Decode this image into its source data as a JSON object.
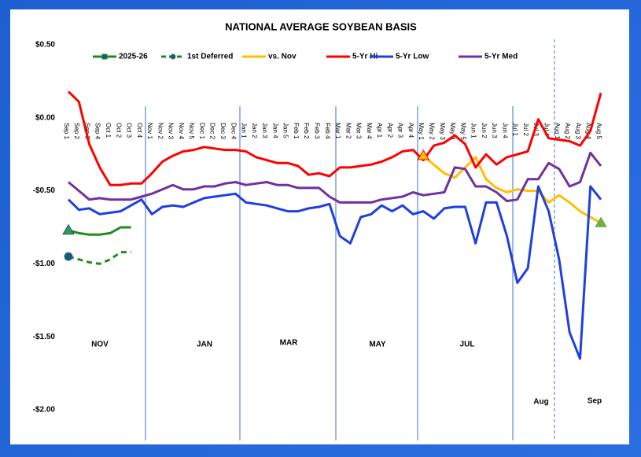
{
  "chart_data": {
    "type": "line",
    "title": "NATIONAL AVERAGE SOYBEAN BASIS",
    "categories": [
      "Sep 1",
      "Sep 2",
      "Sep 3",
      "Sep 4",
      "Oct 1",
      "Oct 2",
      "Oct 3",
      "Oct 4",
      "Nov 1",
      "Nov 2",
      "Nov 3",
      "Nov 4",
      "Nov 5",
      "Dec 1",
      "Dec 2",
      "Dec 3",
      "Dec 4",
      "Jan 1",
      "Jan 2",
      "Jan 3",
      "Jan 4",
      "Jan 5",
      "Feb 1",
      "Feb 2",
      "Feb 3",
      "Feb 4",
      "Mar 1",
      "Mar 2",
      "Mar 3",
      "Mar 4",
      "Apr 1",
      "Apr 2",
      "Apr 3",
      "Apr 4",
      "May 1",
      "May 2",
      "May 3",
      "May 4",
      "May 5",
      "Jun 1",
      "Jun 2",
      "Jun 3",
      "Jun 4",
      "Jul 1",
      "Jul 2",
      "Jul 3",
      "Jul 4",
      "Aug 1",
      "Aug 2",
      "Aug 3",
      "Aug 4",
      "Aug 5"
    ],
    "series": [
      {
        "name": "2025-26",
        "color": "#1e8c1e",
        "dash": false,
        "values": [
          -0.77,
          -0.79,
          -0.8,
          -0.8,
          -0.79,
          -0.75,
          -0.75,
          null,
          null,
          null,
          null,
          null,
          null,
          null,
          null,
          null,
          null,
          null,
          null,
          null,
          null,
          null,
          null,
          null,
          null,
          null,
          null,
          null,
          null,
          null,
          null,
          null,
          null,
          null,
          null,
          null,
          null,
          null,
          null,
          null,
          null,
          null,
          null,
          null,
          null,
          null,
          null,
          null,
          null,
          null,
          null,
          null
        ]
      },
      {
        "name": "1st Deferred",
        "color": "#1e8c1e",
        "dash": true,
        "values": [
          -0.95,
          -0.97,
          -0.99,
          -1.0,
          -0.97,
          -0.92,
          -0.92,
          null,
          null,
          null,
          null,
          null,
          null,
          null,
          null,
          null,
          null,
          null,
          null,
          null,
          null,
          null,
          null,
          null,
          null,
          null,
          null,
          null,
          null,
          null,
          null,
          null,
          null,
          null,
          null,
          null,
          null,
          null,
          null,
          null,
          null,
          null,
          null,
          null,
          null,
          null,
          null,
          null,
          null,
          null,
          null,
          null
        ]
      },
      {
        "name": "vs. Nov",
        "color": "#ffc000",
        "dash": false,
        "values": [
          null,
          null,
          null,
          null,
          null,
          null,
          null,
          null,
          null,
          null,
          null,
          null,
          null,
          null,
          null,
          null,
          null,
          null,
          null,
          null,
          null,
          null,
          null,
          null,
          null,
          null,
          null,
          null,
          null,
          null,
          null,
          null,
          null,
          null,
          -0.26,
          -0.32,
          -0.38,
          -0.41,
          -0.34,
          -0.27,
          -0.42,
          -0.48,
          -0.51,
          -0.49,
          -0.5,
          -0.5,
          -0.58,
          -0.53,
          -0.58,
          -0.64,
          -0.68,
          -0.72
        ]
      },
      {
        "name": "5-Yr Hi",
        "color": "#ff0000",
        "dash": false,
        "values": [
          0.18,
          0.11,
          -0.18,
          -0.34,
          -0.46,
          -0.46,
          -0.45,
          -0.45,
          -0.38,
          -0.3,
          -0.26,
          -0.23,
          -0.22,
          -0.2,
          -0.21,
          -0.22,
          -0.22,
          -0.23,
          -0.27,
          -0.29,
          -0.31,
          -0.31,
          -0.33,
          -0.39,
          -0.38,
          -0.4,
          -0.34,
          -0.34,
          -0.33,
          -0.32,
          -0.3,
          -0.27,
          -0.23,
          -0.22,
          -0.29,
          -0.19,
          -0.17,
          -0.12,
          -0.18,
          -0.34,
          -0.25,
          -0.32,
          -0.27,
          -0.25,
          -0.23,
          -0.01,
          -0.14,
          -0.15,
          -0.16,
          -0.19,
          -0.09,
          0.17
        ]
      },
      {
        "name": "5-Yr Low",
        "color": "#1f3fe0",
        "dash": false,
        "values": [
          -0.56,
          -0.63,
          -0.62,
          -0.66,
          -0.65,
          -0.64,
          -0.6,
          -0.56,
          -0.66,
          -0.61,
          -0.6,
          -0.61,
          -0.58,
          -0.55,
          -0.54,
          -0.53,
          -0.52,
          -0.58,
          -0.59,
          -0.6,
          -0.62,
          -0.64,
          -0.64,
          -0.62,
          -0.61,
          -0.59,
          -0.81,
          -0.86,
          -0.68,
          -0.66,
          -0.6,
          -0.64,
          -0.6,
          -0.66,
          -0.64,
          -0.69,
          -0.62,
          -0.61,
          -0.61,
          -0.86,
          -0.58,
          -0.58,
          -0.81,
          -1.13,
          -1.03,
          -0.47,
          -0.64,
          -0.97,
          -1.47,
          -1.65,
          -0.47,
          -0.56
        ]
      },
      {
        "name": "5-Yr Med",
        "color": "#7030a0",
        "dash": false,
        "values": [
          -0.44,
          -0.5,
          -0.56,
          -0.55,
          -0.56,
          -0.56,
          -0.56,
          -0.54,
          -0.52,
          -0.49,
          -0.46,
          -0.49,
          -0.49,
          -0.47,
          -0.47,
          -0.45,
          -0.44,
          -0.46,
          -0.45,
          -0.44,
          -0.46,
          -0.46,
          -0.48,
          -0.48,
          -0.48,
          -0.54,
          -0.58,
          -0.58,
          -0.58,
          -0.58,
          -0.56,
          -0.55,
          -0.54,
          -0.51,
          -0.53,
          -0.52,
          -0.51,
          -0.34,
          -0.35,
          -0.47,
          -0.47,
          -0.51,
          -0.57,
          -0.56,
          -0.42,
          -0.42,
          -0.31,
          -0.35,
          -0.47,
          -0.44,
          -0.24,
          -0.33
        ]
      }
    ],
    "ylim": [
      -2,
      0.5
    ],
    "yticks": [
      {
        "value": 0.5,
        "label": "$0.50"
      },
      {
        "value": 0,
        "label": "$0.00"
      },
      {
        "value": -0.5,
        "label": "-$0.50"
      },
      {
        "value": -1,
        "label": "-$1.00"
      },
      {
        "value": -1.5,
        "label": "-$1.50"
      },
      {
        "value": -2,
        "label": "-$2.00"
      }
    ],
    "grid": false,
    "annotations": [
      "NOV",
      "JAN",
      "MAR",
      "MAY",
      "JUL",
      "Aug",
      "Sep"
    ]
  }
}
